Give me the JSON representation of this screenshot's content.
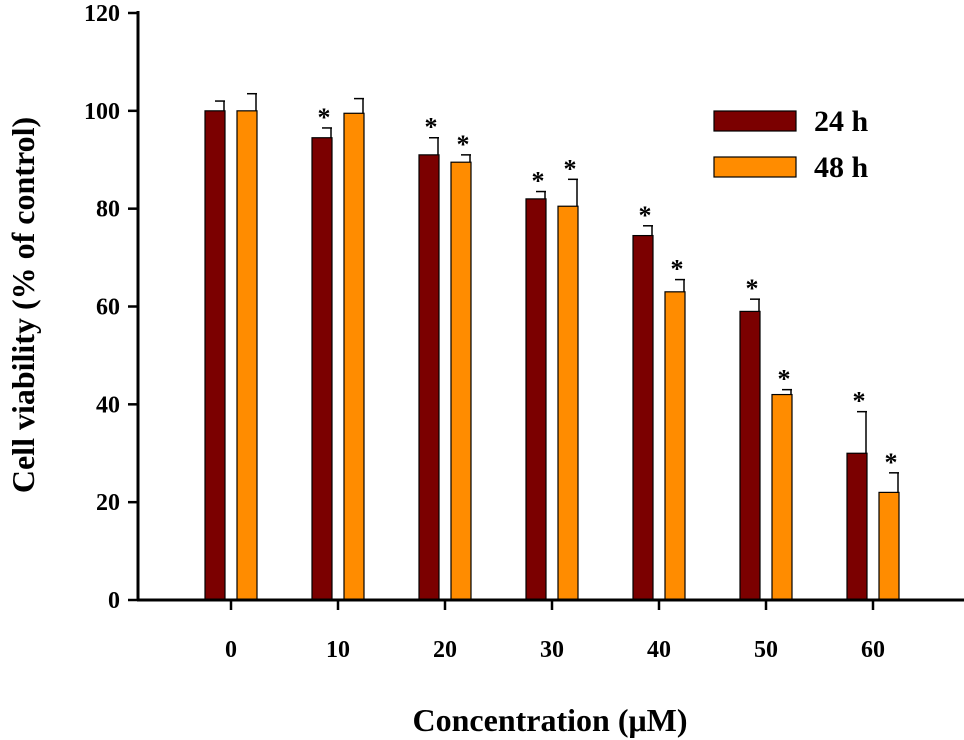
{
  "chart_data": {
    "type": "bar",
    "title": "",
    "xlabel": "Concentration (μM)",
    "ylabel": "Cell viability (% of control)",
    "ylim": [
      0,
      120
    ],
    "yticks": [
      0,
      20,
      40,
      60,
      80,
      100,
      120
    ],
    "categories": [
      "0",
      "10",
      "20",
      "30",
      "40",
      "50",
      "60"
    ],
    "series": [
      {
        "name": "24 h",
        "color": "#7B0000",
        "values": [
          100,
          94.5,
          91,
          82,
          74.5,
          59,
          30
        ],
        "errors": [
          2,
          2,
          3.5,
          1.5,
          2,
          2.5,
          8.5
        ],
        "significance": [
          "",
          "*",
          "*",
          "*",
          "*",
          "*",
          "*"
        ]
      },
      {
        "name": "48 h",
        "color": "#FF8C00",
        "values": [
          100,
          99.5,
          89.5,
          80.5,
          63,
          42,
          22
        ],
        "errors": [
          3.5,
          3,
          1.5,
          5.5,
          2.5,
          1,
          4
        ],
        "significance": [
          "",
          "",
          "*",
          "*",
          "*",
          "*",
          "*"
        ]
      }
    ],
    "legend": {
      "position": "top-right",
      "entries": [
        "24 h",
        "48 h"
      ]
    }
  }
}
